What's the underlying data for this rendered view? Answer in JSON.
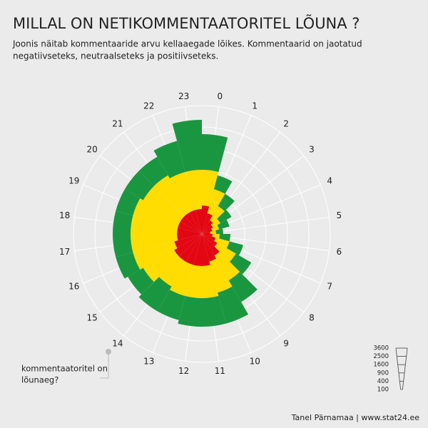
{
  "chart_data": {
    "type": "polar-bar",
    "title": "MILLAL ON NETIKOMMENTAATORITEL LÕUNA ?",
    "subtitle": [
      "Joonis näitab kommentaaride arvu kellaaegade lõikes. Kommentaarid on jaotatud",
      "negatiivseteks, neutraalseteks ja positiivseteks."
    ],
    "categories": [
      "0",
      "1",
      "2",
      "3",
      "4",
      "5",
      "6",
      "7",
      "8",
      "9",
      "10",
      "11",
      "12",
      "13",
      "14",
      "15",
      "16",
      "17",
      "18",
      "19",
      "20",
      "21",
      "22",
      "23"
    ],
    "series": [
      {
        "color": "#e30613",
        "values": [
          178,
          100,
          54,
          36,
          25,
          16,
          25,
          44,
          69,
          136,
          178,
          225,
          225,
          225,
          225,
          225,
          178,
          136,
          136,
          136,
          136,
          136,
          136,
          136
        ]
      },
      {
        "color": "#ffdd00",
        "values": [
          722,
          369,
          171,
          64,
          44,
          28,
          44,
          134,
          267,
          489,
          625,
          675,
          675,
          675,
          578,
          778,
          933,
          975,
          975,
          975,
          867,
          867,
          764,
          764
        ]
      },
      {
        "color": "#1a9641",
        "values": [
          1278,
          334,
          244,
          156,
          109,
          56,
          109,
          222,
          375,
          719,
          1075,
          978,
          978,
          836,
          933,
          597,
          625,
          625,
          625,
          625,
          733,
          733,
          1125,
          1944
        ]
      }
    ],
    "radial_scale": "sqrt",
    "rlim": [
      0,
      3600
    ],
    "rticks": [
      100,
      400,
      900,
      1600,
      2500,
      3600
    ],
    "grid": true,
    "annotation": [
      "kommentaatoritel on",
      "lõunaeg?"
    ],
    "credit": "Tanel Pärnamaa | www.stat24.ee"
  }
}
